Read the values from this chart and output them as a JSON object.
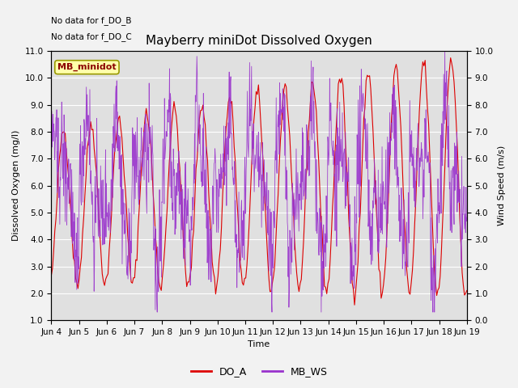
{
  "title": "Mayberry miniDot Dissolved Oxygen",
  "xlabel": "Time",
  "ylabel_left": "Dissolved Oxygen (mg/l)",
  "ylabel_right": "Wind Speed (m/s)",
  "annotations": [
    "No data for f_DO_B",
    "No data for f_DO_C"
  ],
  "legend_box_label": "MB_minidot",
  "ylim_left": [
    1.0,
    11.0
  ],
  "ylim_right": [
    0.0,
    10.0
  ],
  "yticks_left": [
    1.0,
    2.0,
    3.0,
    4.0,
    5.0,
    6.0,
    7.0,
    8.0,
    9.0,
    10.0,
    11.0
  ],
  "yticks_right": [
    0.0,
    1.0,
    2.0,
    3.0,
    4.0,
    5.0,
    6.0,
    7.0,
    8.0,
    9.0,
    10.0
  ],
  "xtick_labels": [
    "Jun 4",
    "Jun 5",
    "Jun 6",
    "Jun 7",
    "Jun 8",
    "Jun 9",
    "Jun 10",
    "Jun 11",
    "Jun 12",
    "Jun 13",
    "Jun 14",
    "Jun 15",
    "Jun 16",
    "Jun 17",
    "Jun 18",
    "Jun 19"
  ],
  "legend_entries": [
    "DO_A",
    "MB_WS"
  ],
  "legend_colors": [
    "#dd0000",
    "#9933cc"
  ],
  "line_do_color": "#dd0000",
  "line_ws_color": "#9933cc",
  "bg_color": "#e0e0e0",
  "fig_bg_color": "#f2f2f2",
  "legend_box_color": "#ffffaa",
  "legend_box_edge": "#999900",
  "title_fontsize": 11,
  "label_fontsize": 8,
  "tick_fontsize": 7.5,
  "annot_fontsize": 7.5
}
